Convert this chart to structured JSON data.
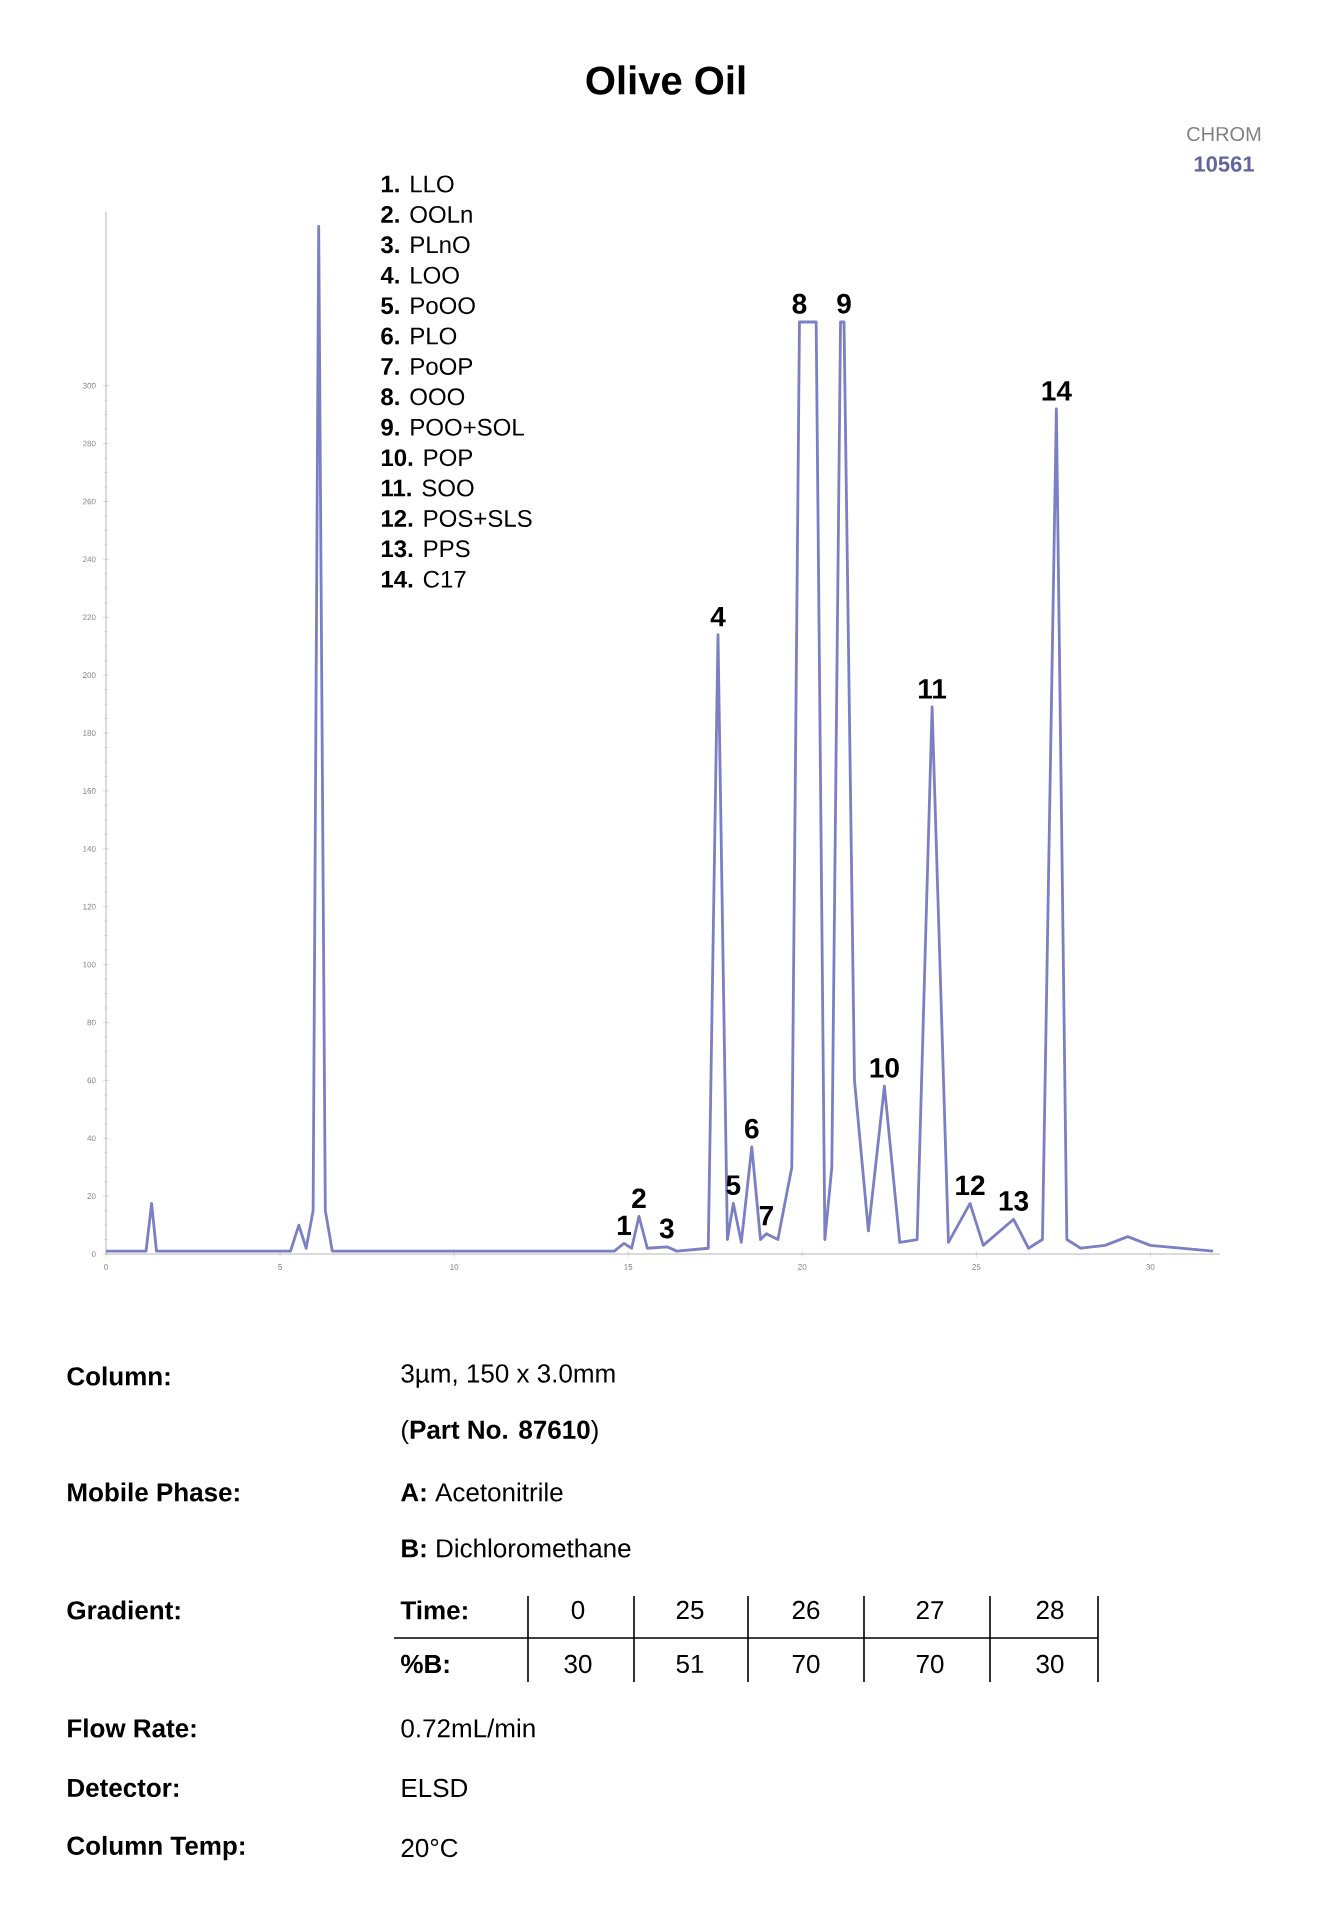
{
  "chart_data": {
    "type": "line",
    "title": "Olive Oil",
    "x": [
      0,
      1.15,
      1.31,
      1.45,
      5.3,
      5.54,
      5.75,
      5.95,
      6.11,
      6.3,
      6.5,
      14.6,
      14.88,
      15.1,
      15.31,
      15.55,
      16.11,
      16.4,
      17.3,
      17.58,
      17.85,
      18.02,
      18.25,
      18.55,
      18.8,
      18.97,
      19.3,
      19.7,
      19.92,
      20.4,
      20.65,
      20.85,
      21.1,
      21.2,
      21.5,
      21.9,
      22.36,
      22.8,
      23.3,
      23.73,
      24.2,
      24.82,
      25.2,
      26.07,
      26.5,
      26.9,
      27.3,
      27.6,
      28.0,
      28.7,
      29.35,
      30.0,
      31.8
    ],
    "values": [
      1,
      1,
      17.5,
      1,
      1,
      10,
      2,
      15,
      355,
      15,
      1,
      1,
      3.7,
      2,
      13,
      2,
      2.5,
      1,
      2,
      214,
      5,
      17.5,
      4,
      37,
      5,
      7,
      5,
      30,
      322,
      322,
      5,
      30,
      322,
      322,
      60,
      8,
      58,
      4,
      5,
      189,
      4,
      17.5,
      3,
      12,
      2,
      5,
      292,
      5,
      2,
      3,
      6,
      3,
      1
    ],
    "color": "#7b7fc4",
    "xlim": [
      0,
      32
    ],
    "ylim": [
      0,
      360
    ],
    "xticks": [
      0,
      5,
      10,
      15,
      20,
      25,
      30
    ],
    "yticks": [
      0,
      20,
      40,
      60,
      80,
      100,
      120,
      140,
      160,
      180,
      200,
      220,
      240,
      260,
      280,
      300
    ],
    "annotations": [
      "CHROM",
      "10561",
      "**1.** LLO",
      "**2.** OOLn",
      "**3.** PLnO",
      "**4.** LOO",
      "**5.** PoOO",
      "**6.** PLO",
      "**7.** PoOP",
      "**8.** OOO",
      "**9.** POO+SOL",
      "**10.** POP",
      "**11.** SOO",
      "**12.** POS+SLS",
      "**13.** PPS",
      "**14.** C17",
      {
        "text": "1",
        "x": 14.88,
        "y": 3.7
      },
      {
        "text": "2",
        "x": 15.31,
        "y": 13
      },
      {
        "text": "3",
        "x": 16.11,
        "y": 2.5
      },
      {
        "text": "4",
        "x": 17.58,
        "y": 214
      },
      {
        "text": "5",
        "x": 18.02,
        "y": 17.5
      },
      {
        "text": "6",
        "x": 18.55,
        "y": 37
      },
      {
        "text": "7",
        "x": 18.97,
        "y": 7
      },
      {
        "text": "8",
        "x": 19.92,
        "y": 322
      },
      {
        "text": "9",
        "x": 21.2,
        "y": 322
      },
      {
        "text": "10",
        "x": 22.36,
        "y": 58
      },
      {
        "text": "11",
        "x": 23.73,
        "y": 189
      },
      {
        "text": "12",
        "x": 24.82,
        "y": 17.5
      },
      {
        "text": "13",
        "x": 26.07,
        "y": 12
      },
      {
        "text": "14",
        "x": 27.3,
        "y": 292
      },
      "Column:",
      "3µm, 150 x 3.0mm",
      "(**Part No. 87610**)",
      "Mobile Phase:",
      "**A:** Acetonitrile",
      "**B:** Dichloromethane",
      "Gradient:",
      "Time:",
      "0",
      "25",
      "26",
      "27",
      "28",
      "%B:",
      "30",
      "51",
      "70",
      "70",
      "30",
      "Flow Rate:",
      "0.72mL/min",
      "Detector:",
      "ELSD",
      "Column Temp:",
      "20°C"
    ]
  }
}
